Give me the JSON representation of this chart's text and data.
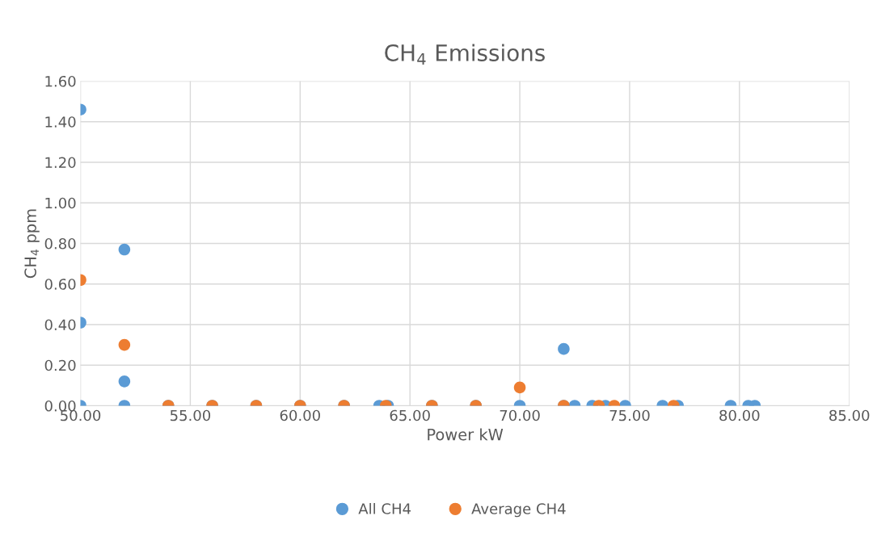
{
  "chart_data": {
    "type": "scatter",
    "title": "CH$_{4}$ Emissions",
    "xlabel": "Power kW",
    "ylabel": "CH$_{4}$ ppm",
    "xlim": [
      50,
      85
    ],
    "ylim": [
      0,
      1.6
    ],
    "xticks": [
      {
        "value": 50,
        "label": "50.00"
      },
      {
        "value": 55,
        "label": "55.00"
      },
      {
        "value": 60,
        "label": "60.00"
      },
      {
        "value": 65,
        "label": "65.00"
      },
      {
        "value": 70,
        "label": "70.00"
      },
      {
        "value": 75,
        "label": "75.00"
      },
      {
        "value": 80,
        "label": "80.00"
      },
      {
        "value": 85,
        "label": "85.00"
      }
    ],
    "yticks": [
      {
        "value": 0,
        "label": "0.00"
      },
      {
        "value": 0.2,
        "label": "0.20"
      },
      {
        "value": 0.4,
        "label": "0.40"
      },
      {
        "value": 0.6,
        "label": "0.60"
      },
      {
        "value": 0.8,
        "label": "0.80"
      },
      {
        "value": 1.0,
        "label": "1.00"
      },
      {
        "value": 1.2,
        "label": "1.20"
      },
      {
        "value": 1.4,
        "label": "1.40"
      },
      {
        "value": 1.6,
        "label": "1.60"
      }
    ],
    "grid": true,
    "legend": "bottom",
    "marker": "circle",
    "series": [
      {
        "name": "All CH4",
        "color": "#5b9bd5",
        "x": [
          50,
          50,
          50,
          52,
          52,
          52,
          54,
          56,
          58,
          60,
          62,
          63.6,
          64,
          66,
          68,
          70,
          72,
          72,
          72.5,
          73.3,
          73.9,
          74.8,
          76.5,
          77.2,
          79.6,
          80.4,
          80.7
        ],
        "values": [
          1.46,
          0.41,
          0,
          0.77,
          0.12,
          0,
          0,
          0,
          0,
          0,
          0,
          0,
          0,
          0,
          0,
          0,
          0.28,
          0,
          0,
          0,
          0,
          0,
          0,
          0,
          0,
          0,
          0
        ]
      },
      {
        "name": "Average CH4",
        "color": "#ed7d31",
        "x": [
          50,
          52,
          54,
          56,
          58,
          60,
          62,
          63.9,
          66,
          68,
          70,
          72,
          73.6,
          74.3,
          77
        ],
        "values": [
          0.62,
          0.3,
          0,
          0,
          0,
          0,
          0,
          0,
          0,
          0,
          0.09,
          0,
          0,
          0,
          0
        ]
      }
    ]
  }
}
